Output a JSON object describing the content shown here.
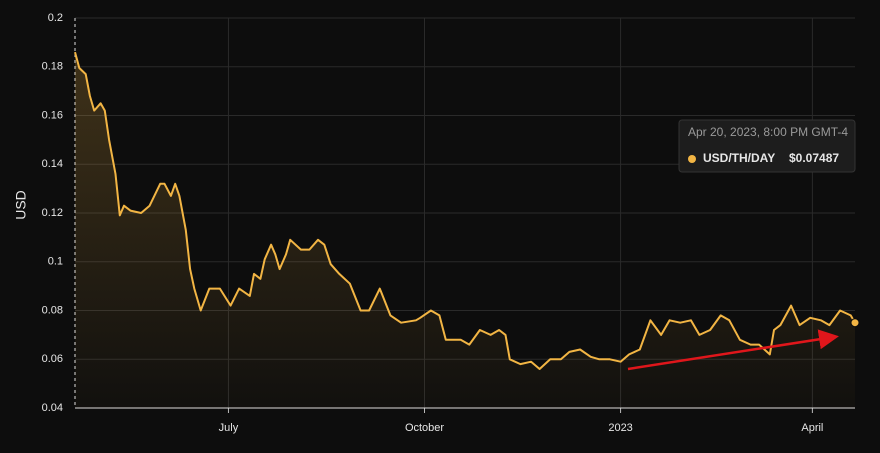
{
  "chart_data": {
    "type": "line",
    "y_axis_label": "USD",
    "x": [
      0,
      2,
      5,
      7,
      9,
      12,
      14,
      16,
      19,
      21,
      23,
      26,
      31,
      35,
      40,
      42,
      45,
      47,
      49,
      52,
      54,
      56,
      59,
      63,
      68,
      73,
      77,
      82,
      84,
      87,
      89,
      92,
      94,
      96,
      99,
      101,
      106,
      110,
      114,
      117,
      120,
      124,
      129,
      134,
      138,
      143,
      148,
      153,
      160,
      162,
      167,
      171,
      174,
      181,
      185,
      190,
      195,
      199,
      202,
      204,
      209,
      214,
      218,
      223,
      228,
      232,
      237,
      242,
      246,
      251,
      256,
      260,
      265,
      270,
      275,
      279,
      284,
      289,
      293,
      298,
      303,
      307,
      312,
      317,
      321,
      326,
      328,
      331,
      336,
      340,
      345,
      350,
      354,
      359,
      364,
      366
    ],
    "series": [
      {
        "name": "USD/TH/DAY",
        "color": "#f2b544",
        "values": [
          0.186,
          0.1795,
          0.177,
          0.168,
          0.162,
          0.165,
          0.162,
          0.15,
          0.136,
          0.119,
          0.123,
          0.121,
          0.12,
          0.123,
          0.132,
          0.132,
          0.127,
          0.132,
          0.127,
          0.113,
          0.097,
          0.089,
          0.08,
          0.089,
          0.089,
          0.082,
          0.089,
          0.086,
          0.095,
          0.093,
          0.101,
          0.107,
          0.103,
          0.097,
          0.103,
          0.109,
          0.105,
          0.105,
          0.109,
          0.107,
          0.099,
          0.095,
          0.091,
          0.08,
          0.08,
          0.089,
          0.078,
          0.075,
          0.076,
          0.077,
          0.08,
          0.078,
          0.068,
          0.068,
          0.066,
          0.072,
          0.07,
          0.072,
          0.07,
          0.06,
          0.058,
          0.059,
          0.056,
          0.06,
          0.06,
          0.063,
          0.064,
          0.061,
          0.06,
          0.06,
          0.059,
          0.062,
          0.064,
          0.076,
          0.07,
          0.076,
          0.075,
          0.076,
          0.07,
          0.072,
          0.078,
          0.076,
          0.068,
          0.066,
          0.066,
          0.062,
          0.072,
          0.074,
          0.082,
          0.074,
          0.077,
          0.076,
          0.074,
          0.08,
          0.078,
          0.075
        ]
      }
    ],
    "xlim": [
      0,
      366
    ],
    "xticks": [
      {
        "value": 72,
        "label": "July"
      },
      {
        "value": 164,
        "label": "October"
      },
      {
        "value": 256,
        "label": "2023"
      },
      {
        "value": 346,
        "label": "April"
      }
    ],
    "ylim": [
      0.04,
      0.2
    ],
    "yticks": [
      0.04,
      0.06,
      0.08,
      0.1,
      0.12,
      0.14,
      0.16,
      0.18,
      0.2
    ],
    "grid": true,
    "tooltip": {
      "date": "Apr 20, 2023, 8:00 PM GMT-4",
      "value_label": "$0.07487"
    }
  }
}
